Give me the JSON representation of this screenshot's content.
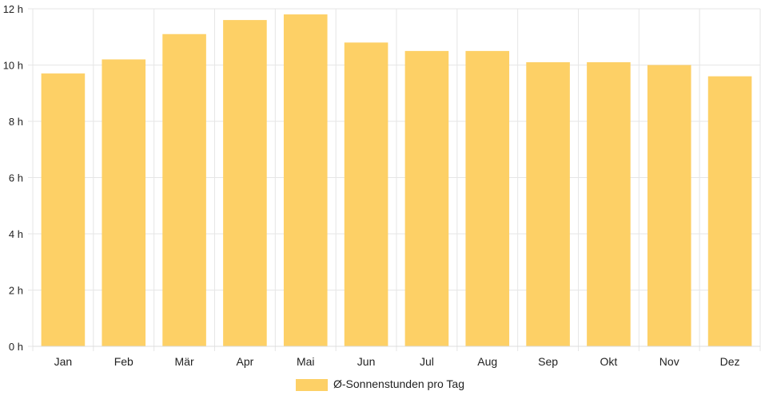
{
  "chart_data": {
    "type": "bar",
    "categories": [
      "Jan",
      "Feb",
      "Mär",
      "Apr",
      "Mai",
      "Jun",
      "Jul",
      "Aug",
      "Sep",
      "Okt",
      "Nov",
      "Dez"
    ],
    "series": [
      {
        "name": "Ø-Sonnenstunden pro Tag",
        "values": [
          9.7,
          10.2,
          11.1,
          11.6,
          11.8,
          10.8,
          10.5,
          10.5,
          10.1,
          10.1,
          10.0,
          9.6
        ]
      }
    ],
    "y_ticks": [
      "0 h",
      "2 h",
      "4 h",
      "6 h",
      "8 h",
      "10 h",
      "12 h"
    ],
    "ylim": [
      0,
      12
    ],
    "grid": true,
    "legend_position": "bottom",
    "bar_color": "#fdd066",
    "grid_color": "#e6e6e6"
  }
}
